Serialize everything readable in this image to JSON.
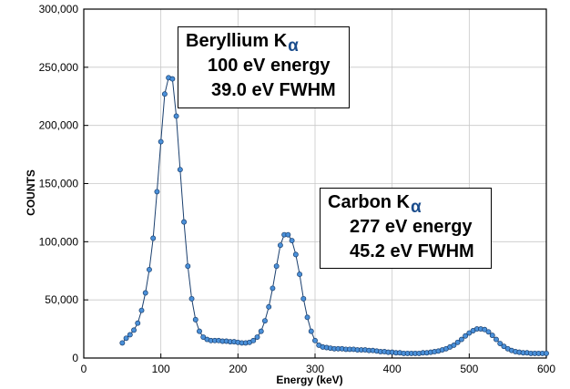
{
  "chart_data": {
    "type": "line",
    "xlabel": "Energy (keV)",
    "ylabel": "COUNTS",
    "xlim": [
      0,
      600
    ],
    "ylim": [
      0,
      300000
    ],
    "x_ticks": [
      0,
      100,
      200,
      300,
      400,
      500,
      600
    ],
    "y_ticks": [
      0,
      50000,
      100000,
      150000,
      200000,
      250000,
      300000
    ],
    "x_tick_labels": [
      "0",
      "100",
      "200",
      "300",
      "400",
      "500",
      "600"
    ],
    "y_tick_labels": [
      "0",
      "50,000",
      "100,000",
      "150,000",
      "200,000",
      "250,000",
      "300,000"
    ],
    "grid": true,
    "series": [
      {
        "color": "#4a90d9",
        "line_color": "#1a3f6e",
        "x": [
          50,
          55,
          60,
          65,
          70,
          75,
          80,
          85,
          90,
          95,
          100,
          105,
          110,
          115,
          120,
          125,
          130,
          135,
          140,
          145,
          150,
          155,
          160,
          165,
          170,
          175,
          180,
          185,
          190,
          195,
          200,
          205,
          210,
          215,
          220,
          225,
          230,
          235,
          240,
          245,
          250,
          255,
          260,
          265,
          270,
          275,
          280,
          285,
          290,
          295,
          300,
          305,
          310,
          315,
          320,
          325,
          330,
          335,
          340,
          345,
          350,
          355,
          360,
          365,
          370,
          375,
          380,
          385,
          390,
          395,
          400,
          405,
          410,
          415,
          420,
          425,
          430,
          435,
          440,
          445,
          450,
          455,
          460,
          465,
          470,
          475,
          480,
          485,
          490,
          495,
          500,
          505,
          510,
          515,
          520,
          525,
          530,
          535,
          540,
          545,
          550,
          555,
          560,
          565,
          570,
          575,
          580,
          585,
          590,
          595,
          600
        ],
        "y": [
          13000,
          17000,
          20000,
          24000,
          30000,
          41000,
          56000,
          76000,
          103000,
          143000,
          186000,
          227000,
          241000,
          240000,
          208000,
          162000,
          117000,
          79000,
          51000,
          33000,
          23000,
          18000,
          16000,
          15000,
          15000,
          15000,
          14500,
          14500,
          14000,
          14000,
          13500,
          13000,
          13000,
          13500,
          15000,
          18000,
          23000,
          32000,
          44000,
          60000,
          79000,
          97000,
          106000,
          106000,
          101000,
          89000,
          72000,
          51000,
          35000,
          23000,
          15000,
          11000,
          9500,
          9000,
          8500,
          8000,
          8000,
          8000,
          7500,
          7500,
          7500,
          7000,
          7000,
          7000,
          6500,
          6500,
          6000,
          5500,
          5500,
          5000,
          5000,
          4500,
          4500,
          4000,
          4000,
          4000,
          4000,
          4000,
          4500,
          4500,
          5000,
          5500,
          6000,
          7000,
          8000,
          9500,
          11000,
          13500,
          16000,
          19000,
          21500,
          23500,
          25000,
          25000,
          24500,
          22500,
          19500,
          16000,
          12500,
          10000,
          8000,
          6500,
          5500,
          5000,
          4500,
          4500,
          4000,
          4000,
          4000,
          4000,
          4000
        ]
      }
    ],
    "annotations": [
      {
        "title": "Beryllium K",
        "subscript": "α",
        "energy": "100 eV energy",
        "fwhm": "39.0 eV FWHM"
      },
      {
        "title": "Carbon K",
        "subscript": "α",
        "energy": "277 eV energy",
        "fwhm": "45.2 eV FWHM"
      }
    ]
  }
}
